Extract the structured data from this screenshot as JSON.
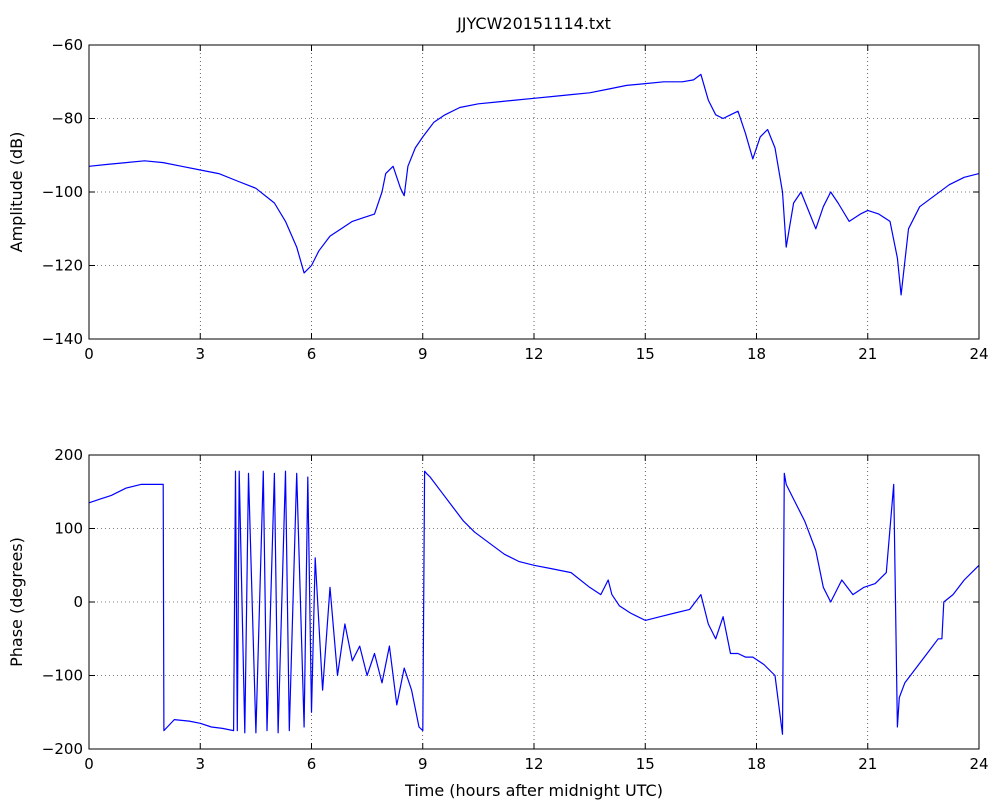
{
  "chart_data": [
    {
      "type": "line",
      "title": "JJYCW20151114.txt",
      "xlabel": "",
      "ylabel": "Amplitude (dB)",
      "xlim": [
        0,
        24
      ],
      "ylim": [
        -140,
        -60
      ],
      "xticks": [
        0,
        3,
        6,
        9,
        12,
        15,
        18,
        21,
        24
      ],
      "yticks": [
        -140,
        -120,
        -100,
        -80,
        -60
      ],
      "xtick_labels": [
        "0",
        "3",
        "6",
        "9",
        "12",
        "15",
        "18",
        "21",
        "24"
      ],
      "ytick_labels": [
        "−140",
        "−120",
        "−100",
        "−80",
        "−60"
      ],
      "grid": true,
      "color": "#0000ff",
      "series": [
        {
          "x": [
            0,
            0.5,
            1,
            1.5,
            2,
            2.5,
            3,
            3.5,
            4,
            4.5,
            5,
            5.3,
            5.6,
            5.8,
            6.0,
            6.2,
            6.5,
            6.8,
            7.1,
            7.4,
            7.7,
            7.9,
            8.0,
            8.2,
            8.4,
            8.5,
            8.6,
            8.8,
            9.0,
            9.3,
            9.6,
            10,
            10.5,
            11,
            11.5,
            12,
            12.5,
            13,
            13.5,
            14,
            14.5,
            15,
            15.5,
            16,
            16.3,
            16.5,
            16.7,
            16.9,
            17.1,
            17.3,
            17.5,
            17.7,
            17.9,
            18.1,
            18.3,
            18.5,
            18.7,
            18.8,
            19.0,
            19.2,
            19.4,
            19.6,
            19.8,
            20.0,
            20.2,
            20.5,
            20.8,
            21.0,
            21.3,
            21.6,
            21.8,
            21.9,
            22.1,
            22.4,
            22.8,
            23.2,
            23.6,
            24
          ],
          "y": [
            -93,
            -92.5,
            -92,
            -91.5,
            -92,
            -93,
            -94,
            -95,
            -97,
            -99,
            -103,
            -108,
            -115,
            -122,
            -120,
            -116,
            -112,
            -110,
            -108,
            -107,
            -106,
            -100,
            -95,
            -93,
            -99,
            -101,
            -93,
            -88,
            -85,
            -81,
            -79,
            -77,
            -76,
            -75.5,
            -75,
            -74.5,
            -74,
            -73.5,
            -73,
            -72,
            -71,
            -70.5,
            -70,
            -70,
            -69.5,
            -68,
            -75,
            -79,
            -80,
            -79,
            -78,
            -84,
            -91,
            -85,
            -83,
            -88,
            -100,
            -115,
            -103,
            -100,
            -105,
            -110,
            -104,
            -100,
            -103,
            -108,
            -106,
            -105,
            -106,
            -108,
            -118,
            -128,
            -110,
            -104,
            -101,
            -98,
            -96,
            -95
          ]
        }
      ]
    },
    {
      "type": "line",
      "title": "",
      "xlabel": "Time (hours after midnight UTC)",
      "ylabel": "Phase (degrees)",
      "xlim": [
        0,
        24
      ],
      "ylim": [
        -200,
        200
      ],
      "xticks": [
        0,
        3,
        6,
        9,
        12,
        15,
        18,
        21,
        24
      ],
      "yticks": [
        -200,
        -100,
        0,
        100,
        200
      ],
      "xtick_labels": [
        "0",
        "3",
        "6",
        "9",
        "12",
        "15",
        "18",
        "21",
        "24"
      ],
      "ytick_labels": [
        "−200",
        "−100",
        "0",
        "100",
        "200"
      ],
      "grid": true,
      "color": "#0000ff",
      "series": [
        {
          "x": [
            0,
            0.3,
            0.6,
            1.0,
            1.4,
            1.8,
            2.0,
            2.02,
            2.3,
            2.7,
            3.0,
            3.3,
            3.6,
            3.9,
            3.95,
            4.0,
            4.05,
            4.2,
            4.3,
            4.5,
            4.7,
            4.8,
            5.0,
            5.1,
            5.3,
            5.4,
            5.6,
            5.8,
            5.9,
            6.0,
            6.1,
            6.3,
            6.5,
            6.7,
            6.9,
            7.1,
            7.3,
            7.5,
            7.7,
            7.9,
            8.1,
            8.3,
            8.5,
            8.7,
            8.9,
            9.0,
            9.05,
            9.1,
            9.2,
            9.5,
            9.8,
            10.1,
            10.4,
            10.8,
            11.2,
            11.6,
            12.0,
            12.5,
            13.0,
            13.5,
            13.8,
            14.0,
            14.1,
            14.3,
            14.6,
            15.0,
            15.4,
            15.8,
            16.2,
            16.5,
            16.7,
            16.9,
            17.1,
            17.3,
            17.5,
            17.7,
            17.9,
            18.2,
            18.5,
            18.7,
            18.75,
            18.8,
            19.0,
            19.3,
            19.6,
            19.8,
            20.0,
            20.3,
            20.6,
            20.9,
            21.2,
            21.5,
            21.7,
            21.8,
            21.85,
            22.0,
            22.3,
            22.6,
            22.9,
            23.0,
            23.05,
            23.3,
            23.6,
            24.0
          ],
          "y": [
            135,
            140,
            145,
            155,
            160,
            160,
            160,
            -175,
            -160,
            -162,
            -165,
            -170,
            -172,
            -175,
            178,
            -175,
            178,
            -178,
            175,
            -178,
            178,
            -175,
            175,
            -178,
            178,
            -175,
            175,
            -170,
            170,
            -150,
            60,
            -120,
            20,
            -100,
            -30,
            -80,
            -60,
            -100,
            -70,
            -110,
            -60,
            -140,
            -90,
            -120,
            -170,
            -175,
            178,
            175,
            170,
            150,
            130,
            110,
            95,
            80,
            65,
            55,
            50,
            45,
            40,
            20,
            10,
            30,
            10,
            -5,
            -15,
            -25,
            -20,
            -15,
            -10,
            10,
            -30,
            -50,
            -20,
            -70,
            -70,
            -75,
            -75,
            -85,
            -100,
            -180,
            175,
            160,
            140,
            110,
            70,
            20,
            0,
            30,
            10,
            20,
            25,
            40,
            160,
            -170,
            -130,
            -110,
            -90,
            -70,
            -50,
            -50,
            0,
            10,
            30,
            50
          ]
        }
      ]
    }
  ]
}
